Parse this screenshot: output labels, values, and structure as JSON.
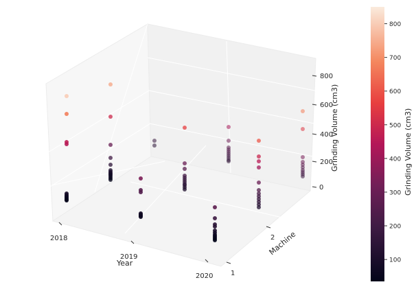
{
  "chart_data": {
    "type": "scatter",
    "projection": "3d",
    "xlabel": "Year",
    "ylabel": "Machine",
    "zlabel": "Grinding Volume (cm3)",
    "x_ticks": [
      "2018",
      "2019",
      "2020"
    ],
    "y_ticks": [
      "1",
      "2"
    ],
    "z_ticks": [
      0,
      200,
      400,
      600,
      800
    ],
    "zlim": [
      0,
      850
    ],
    "grid": true,
    "colormap": "rocket",
    "colorbar": {
      "label": "Grinding Volume (cm3)",
      "ticks": [
        100,
        200,
        300,
        400,
        500,
        600,
        700,
        800
      ],
      "range": [
        35,
        850
      ],
      "placement": "right"
    },
    "groups": [
      {
        "year": 2018,
        "machine": 1,
        "volumes": [
          800,
          670,
          465,
          450,
          90,
          80,
          72,
          65,
          58,
          50,
          45,
          40
        ]
      },
      {
        "year": 2018,
        "machine": 2,
        "volumes": [
          735,
          500,
          295,
          200,
          150,
          110,
          100,
          92,
          85,
          78,
          70,
          60,
          50,
          40
        ]
      },
      {
        "year": 2018,
        "machine": 3,
        "volumes": [
          175,
          140
        ]
      },
      {
        "year": 2019,
        "machine": 1,
        "volumes": [
          340,
          255,
          240,
          85,
          78,
          72,
          66,
          60
        ]
      },
      {
        "year": 2019,
        "machine": 2,
        "volumes": [
          560,
          300,
          260,
          210,
          195,
          180,
          165,
          150,
          140,
          125,
          110
        ]
      },
      {
        "year": 2019,
        "machine": 3,
        "volumes": [
          415,
          315,
          265,
          250,
          235,
          220,
          205,
          190,
          175,
          165
        ]
      },
      {
        "year": 2020,
        "machine": 1,
        "volumes": [
          270,
          190,
          145,
          130,
          100,
          85,
          70,
          60,
          50,
          40,
          30
        ]
      },
      {
        "year": 2020,
        "machine": 2,
        "volumes": [
          605,
          490,
          455,
          410,
          300,
          245,
          220,
          200,
          180,
          160,
          140,
          120
        ]
      },
      {
        "year": 2020,
        "machine": 3,
        "volumes": [
          670,
          540,
          335,
          300,
          280,
          260,
          240,
          225,
          210,
          195
        ]
      }
    ]
  }
}
